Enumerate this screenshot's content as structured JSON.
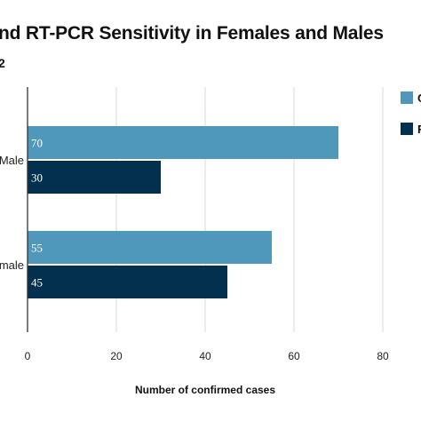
{
  "chart_data": {
    "type": "bar",
    "orientation": "horizontal",
    "title": "nd RT-PCR Sensitivity in Females and Males",
    "subtitle": "2",
    "xlabel": "Number of confirmed cases",
    "ylabel": "",
    "xlim": [
      0,
      80
    ],
    "x_ticks": [
      0,
      20,
      40,
      60,
      80
    ],
    "grid": true,
    "legend_position": "right",
    "categories": [
      "Male",
      "male"
    ],
    "series": [
      {
        "name": "C",
        "color": "#4f97bb",
        "values": [
          70,
          55
        ]
      },
      {
        "name": "F",
        "color": "#03304f",
        "values": [
          30,
          45
        ]
      }
    ]
  }
}
